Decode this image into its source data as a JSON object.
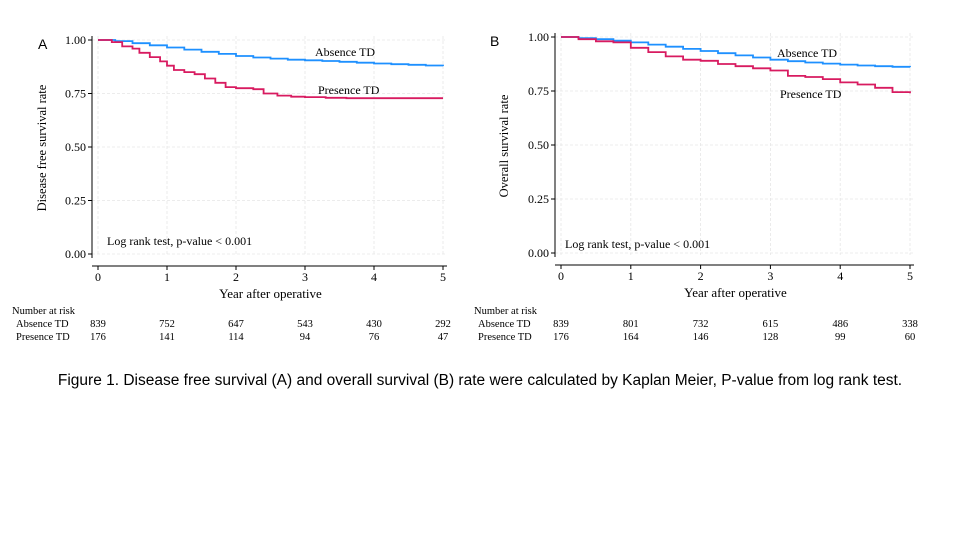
{
  "caption": "Figure 1. Disease free survival (A) and overall survival (B) rate were calculated by Kaplan Meier, P-value from log rank test.",
  "colors": {
    "absence": "#1E90FF",
    "presence": "#D81B60",
    "grid": "#e6e6e6",
    "axis": "#000000"
  },
  "chart_data": [
    {
      "type": "line",
      "panel_label": "A",
      "ylabel": "Disease free survival rate",
      "xlabel": "Year after operative",
      "xlim": [
        0,
        5
      ],
      "ylim": [
        0,
        1
      ],
      "xticks": [
        0,
        1,
        2,
        3,
        4,
        5
      ],
      "yticks": [
        "0.00",
        "0.25",
        "0.50",
        "0.75",
        "1.00"
      ],
      "annotation": "Log rank test, p-value < 0.001",
      "series": [
        {
          "name": "Absence TD",
          "key": "absence",
          "x": [
            0,
            0.25,
            0.5,
            0.75,
            1.0,
            1.25,
            1.5,
            1.75,
            2.0,
            2.25,
            2.5,
            2.75,
            3.0,
            3.25,
            3.5,
            3.75,
            4.0,
            4.25,
            4.5,
            4.75,
            5.0
          ],
          "y": [
            1.0,
            0.995,
            0.985,
            0.975,
            0.965,
            0.955,
            0.945,
            0.935,
            0.925,
            0.918,
            0.913,
            0.908,
            0.905,
            0.902,
            0.898,
            0.894,
            0.89,
            0.887,
            0.884,
            0.881,
            0.878
          ]
        },
        {
          "name": "Presence TD",
          "key": "presence",
          "x": [
            0,
            0.2,
            0.35,
            0.5,
            0.6,
            0.75,
            0.9,
            1.0,
            1.1,
            1.25,
            1.4,
            1.55,
            1.7,
            1.85,
            2.0,
            2.25,
            2.4,
            2.6,
            2.8,
            3.0,
            3.3,
            3.6,
            4.0,
            4.5,
            5.0
          ],
          "y": [
            1.0,
            0.99,
            0.97,
            0.96,
            0.94,
            0.92,
            0.9,
            0.88,
            0.86,
            0.85,
            0.84,
            0.82,
            0.8,
            0.78,
            0.775,
            0.77,
            0.75,
            0.74,
            0.735,
            0.733,
            0.73,
            0.728,
            0.728,
            0.728,
            0.728
          ]
        }
      ],
      "risk_table": {
        "title": "Number at risk",
        "rows": [
          {
            "label": "Absence TD",
            "values": [
              "839",
              "752",
              "647",
              "543",
              "430",
              "292"
            ]
          },
          {
            "label": "Presence TD",
            "values": [
              "176",
              "141",
              "114",
              "94",
              "76",
              "47"
            ]
          }
        ]
      }
    },
    {
      "type": "line",
      "panel_label": "B",
      "ylabel": "Overall survival rate",
      "xlabel": "Year after operative",
      "xlim": [
        0,
        5
      ],
      "ylim": [
        0,
        1
      ],
      "xticks": [
        0,
        1,
        2,
        3,
        4,
        5
      ],
      "yticks": [
        "0.00",
        "0.25",
        "0.50",
        "0.75",
        "1.00"
      ],
      "annotation": "Log rank test, p-value < 0.001",
      "series": [
        {
          "name": "Absence TD",
          "key": "absence",
          "x": [
            0,
            0.25,
            0.5,
            0.75,
            1.0,
            1.25,
            1.5,
            1.75,
            2.0,
            2.25,
            2.5,
            2.75,
            3.0,
            3.25,
            3.5,
            3.75,
            4.0,
            4.25,
            4.5,
            4.75,
            5.0
          ],
          "y": [
            1.0,
            0.995,
            0.99,
            0.983,
            0.975,
            0.965,
            0.955,
            0.945,
            0.935,
            0.925,
            0.915,
            0.905,
            0.895,
            0.888,
            0.882,
            0.877,
            0.872,
            0.868,
            0.865,
            0.862,
            0.86
          ]
        },
        {
          "name": "Presence TD",
          "key": "presence",
          "x": [
            0,
            0.25,
            0.5,
            0.75,
            1.0,
            1.25,
            1.5,
            1.75,
            2.0,
            2.25,
            2.5,
            2.75,
            3.0,
            3.25,
            3.5,
            3.75,
            4.0,
            4.25,
            4.5,
            4.75,
            5.0
          ],
          "y": [
            1.0,
            0.99,
            0.98,
            0.975,
            0.95,
            0.93,
            0.91,
            0.895,
            0.89,
            0.875,
            0.865,
            0.855,
            0.845,
            0.82,
            0.815,
            0.805,
            0.79,
            0.78,
            0.765,
            0.745,
            0.74
          ]
        }
      ],
      "risk_table": {
        "title": "Number at risk",
        "rows": [
          {
            "label": "Absence TD",
            "values": [
              "839",
              "801",
              "732",
              "615",
              "486",
              "338"
            ]
          },
          {
            "label": "Presence TD",
            "values": [
              "176",
              "164",
              "146",
              "128",
              "99",
              "60"
            ]
          }
        ]
      }
    }
  ]
}
